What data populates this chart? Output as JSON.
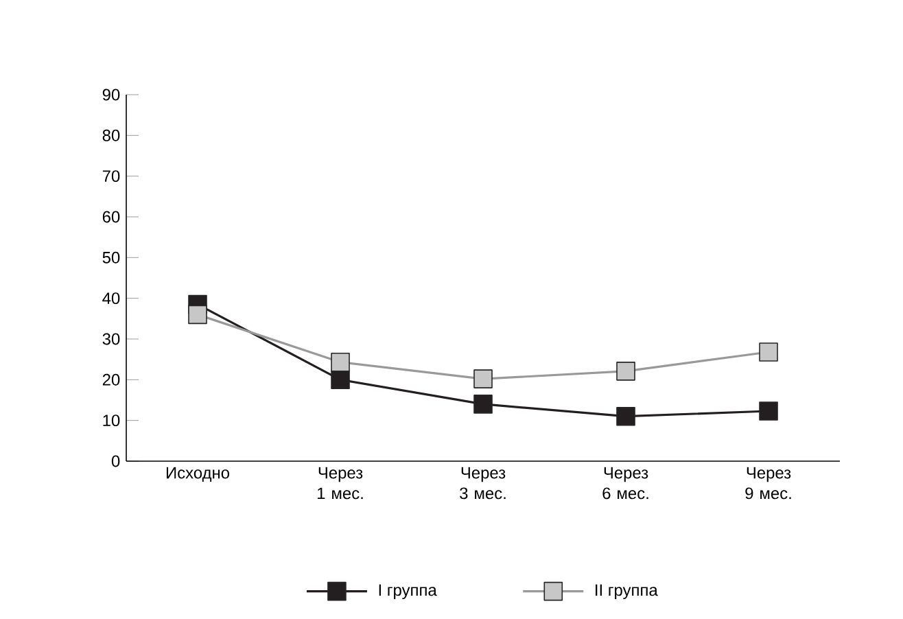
{
  "chart_data": {
    "type": "line",
    "categories": [
      "Исходно",
      "Через 1 мес.",
      "Через 3 мес.",
      "Через 6 мес.",
      "Через 9 мес."
    ],
    "series": [
      {
        "name": "I группа",
        "color": "#231f20",
        "values": [
          38.5,
          20,
          14,
          11,
          12.3
        ]
      },
      {
        "name": "II группа",
        "color": "#999999",
        "values": [
          36,
          24.3,
          20.2,
          22.1,
          26.8
        ]
      }
    ],
    "ylim": [
      0,
      90
    ],
    "yticks": [
      0,
      10,
      20,
      30,
      40,
      50,
      60,
      70,
      80,
      90
    ],
    "marker": "square",
    "line_style": "solid",
    "grid": false,
    "legend": "bottom"
  }
}
